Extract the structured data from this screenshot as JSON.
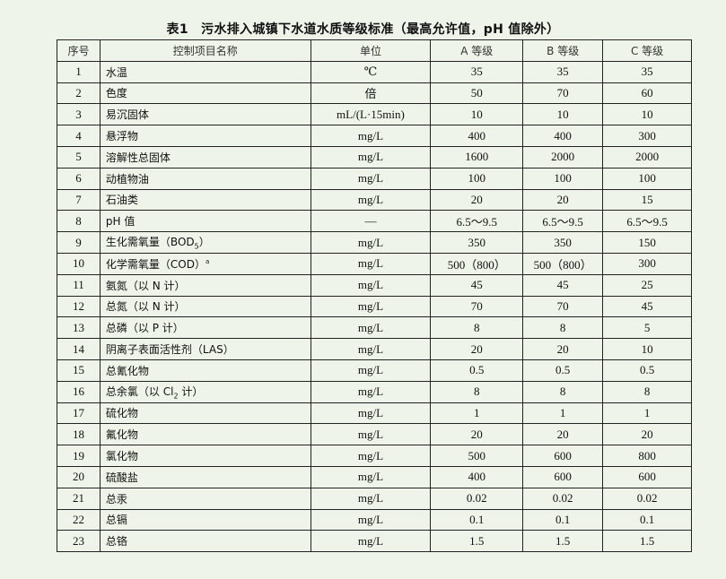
{
  "title": "表1　污水排入城镇下水道水质等级标准（最高允许值，pH 值除外）",
  "headers": [
    "序号",
    "控制项目名称",
    "单位",
    "A 等级",
    "B 等级",
    "C 等级"
  ],
  "rows": [
    {
      "no": "1",
      "name": "水温",
      "unit": "℃",
      "a": "35",
      "b": "35",
      "c": "35"
    },
    {
      "no": "2",
      "name": "色度",
      "unit": "倍",
      "a": "50",
      "b": "70",
      "c": "60"
    },
    {
      "no": "3",
      "name": "易沉固体",
      "unit": "mL/(L·15min)",
      "a": "10",
      "b": "10",
      "c": "10"
    },
    {
      "no": "4",
      "name": "悬浮物",
      "unit": "mg/L",
      "a": "400",
      "b": "400",
      "c": "300"
    },
    {
      "no": "5",
      "name": "溶解性总固体",
      "unit": "mg/L",
      "a": "1600",
      "b": "2000",
      "c": "2000"
    },
    {
      "no": "6",
      "name": "动植物油",
      "unit": "mg/L",
      "a": "100",
      "b": "100",
      "c": "100"
    },
    {
      "no": "7",
      "name": "石油类",
      "unit": "mg/L",
      "a": "20",
      "b": "20",
      "c": "15"
    },
    {
      "no": "8",
      "name": "pH 值",
      "unit": "—",
      "a": "6.5～9.5",
      "b": "6.5～9.5",
      "c": "6.5～9.5"
    },
    {
      "no": "9",
      "name": "生化需氧量（BOD",
      "sub": "5",
      "suffix": "）",
      "unit": "mg/L",
      "a": "350",
      "b": "350",
      "c": "150"
    },
    {
      "no": "10",
      "name": "化学需氧量（COD）",
      "sup": "a",
      "unit": "mg/L",
      "a": "500（800）",
      "b": "500（800）",
      "c": "300"
    },
    {
      "no": "11",
      "name": "氨氮（以 N 计）",
      "unit": "mg/L",
      "a": "45",
      "b": "45",
      "c": "25"
    },
    {
      "no": "12",
      "name": "总氮（以 N 计）",
      "unit": "mg/L",
      "a": "70",
      "b": "70",
      "c": "45"
    },
    {
      "no": "13",
      "name": "总磷（以 P 计）",
      "unit": "mg/L",
      "a": "8",
      "b": "8",
      "c": "5"
    },
    {
      "no": "14",
      "name": "阴离子表面活性剂（LAS）",
      "unit": "mg/L",
      "a": "20",
      "b": "20",
      "c": "10"
    },
    {
      "no": "15",
      "name": "总氰化物",
      "unit": "mg/L",
      "a": "0.5",
      "b": "0.5",
      "c": "0.5"
    },
    {
      "no": "16",
      "name": "总余氯（以 Cl",
      "sub": "2",
      "suffix": " 计）",
      "unit": "mg/L",
      "a": "8",
      "b": "8",
      "c": "8"
    },
    {
      "no": "17",
      "name": "硫化物",
      "unit": "mg/L",
      "a": "1",
      "b": "1",
      "c": "1"
    },
    {
      "no": "18",
      "name": "氟化物",
      "unit": "mg/L",
      "a": "20",
      "b": "20",
      "c": "20"
    },
    {
      "no": "19",
      "name": "氯化物",
      "unit": "mg/L",
      "a": "500",
      "b": "600",
      "c": "800"
    },
    {
      "no": "20",
      "name": "硫酸盐",
      "unit": "mg/L",
      "a": "400",
      "b": "600",
      "c": "600"
    },
    {
      "no": "21",
      "name": "总汞",
      "unit": "mg/L",
      "a": "0.02",
      "b": "0.02",
      "c": "0.02"
    },
    {
      "no": "22",
      "name": "总镉",
      "unit": "mg/L",
      "a": "0.1",
      "b": "0.1",
      "c": "0.1"
    },
    {
      "no": "23",
      "name": "总铬",
      "unit": "mg/L",
      "a": "1.5",
      "b": "1.5",
      "c": "1.5"
    }
  ]
}
